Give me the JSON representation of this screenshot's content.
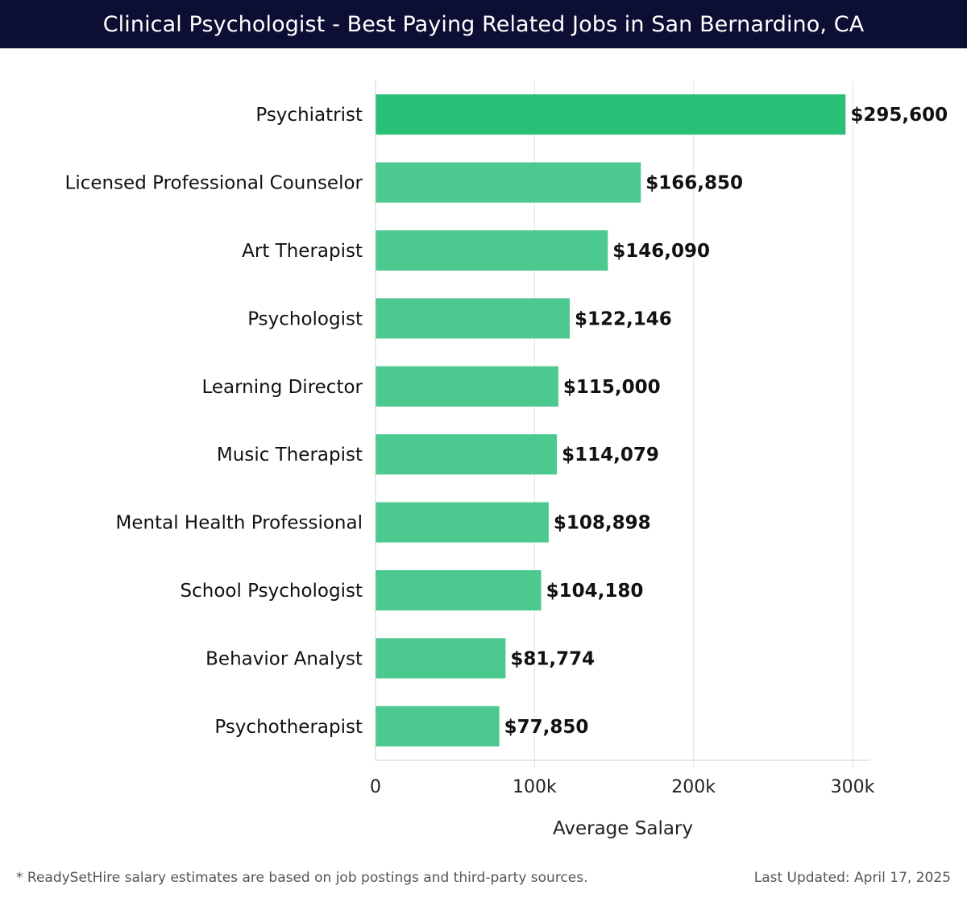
{
  "title": "Clinical Psychologist - Best Paying Related Jobs in San Bernardino, CA",
  "chart_data": {
    "type": "bar",
    "orientation": "horizontal",
    "title": "Clinical Psychologist - Best Paying Related Jobs in San Bernardino, CA",
    "xlabel": "Average Salary",
    "ylabel": "",
    "xlim": [
      0,
      300000
    ],
    "grid": true,
    "ticks": [
      {
        "value": 0,
        "label": "0"
      },
      {
        "value": 100000,
        "label": "100k"
      },
      {
        "value": 200000,
        "label": "200k"
      },
      {
        "value": 300000,
        "label": "300k"
      }
    ],
    "categories": [
      "Psychiatrist",
      "Licensed Professional Counselor",
      "Art Therapist",
      "Psychologist",
      "Learning Director",
      "Music Therapist",
      "Mental Health Professional",
      "School Psychologist",
      "Behavior Analyst",
      "Psychotherapist"
    ],
    "values": [
      295600,
      166850,
      146090,
      122146,
      115000,
      114079,
      108898,
      104180,
      81774,
      77850
    ],
    "value_labels": [
      "$295,600",
      "$166,850",
      "$146,090",
      "$122,146",
      "$115,000",
      "$114,079",
      "$108,898",
      "$104,180",
      "$81,774",
      "$77,850"
    ],
    "highlight_color": "#2abf76",
    "bar_color": "#4cc98e"
  },
  "footer": {
    "note": "* ReadySetHire salary estimates are based on job postings and third-party sources.",
    "updated": "Last Updated: April 17, 2025"
  }
}
